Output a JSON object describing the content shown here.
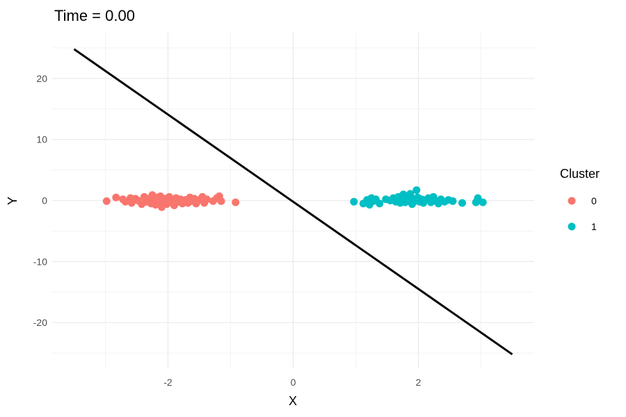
{
  "chart_data": {
    "type": "scatter",
    "title": "Time = 0.00",
    "xlabel": "X",
    "ylabel": "Y",
    "xlim": [
      -3.85,
      3.85
    ],
    "ylim": [
      -27.5,
      27.5
    ],
    "x_ticks": [
      -2,
      0,
      2
    ],
    "y_ticks": [
      -20,
      -10,
      0,
      10,
      20
    ],
    "x_tick_labels": [
      "-2",
      "0",
      "2"
    ],
    "y_tick_labels": [
      "-20",
      "-10",
      "0",
      "10",
      "20"
    ],
    "grid": true,
    "legend": {
      "title": "Cluster",
      "position": "right"
    },
    "series": [
      {
        "name": "0",
        "color": "#F8766D",
        "points": [
          [
            -2.98,
            -0.1
          ],
          [
            -2.83,
            0.5
          ],
          [
            -2.72,
            0.2
          ],
          [
            -2.68,
            -0.2
          ],
          [
            -2.6,
            0.4
          ],
          [
            -2.58,
            -0.4
          ],
          [
            -2.52,
            0.3
          ],
          [
            -2.48,
            0.0
          ],
          [
            -2.42,
            -0.6
          ],
          [
            -2.38,
            0.6
          ],
          [
            -2.35,
            -0.2
          ],
          [
            -2.3,
            0.3
          ],
          [
            -2.27,
            -0.5
          ],
          [
            -2.25,
            0.9
          ],
          [
            -2.22,
            0.0
          ],
          [
            -2.2,
            -0.7
          ],
          [
            -2.18,
            0.5
          ],
          [
            -2.15,
            -0.3
          ],
          [
            -2.12,
            0.7
          ],
          [
            -2.1,
            -1.1
          ],
          [
            -2.07,
            -0.2
          ],
          [
            -2.05,
            0.3
          ],
          [
            -2.02,
            -0.6
          ],
          [
            -1.98,
            0.6
          ],
          [
            -1.95,
            -0.3
          ],
          [
            -1.92,
            0.1
          ],
          [
            -1.9,
            -0.8
          ],
          [
            -1.87,
            0.4
          ],
          [
            -1.83,
            -0.2
          ],
          [
            -1.8,
            0.2
          ],
          [
            -1.77,
            -0.5
          ],
          [
            -1.72,
            0.1
          ],
          [
            -1.68,
            -0.4
          ],
          [
            -1.65,
            0.5
          ],
          [
            -1.62,
            -0.1
          ],
          [
            -1.58,
            0.3
          ],
          [
            -1.55,
            -0.5
          ],
          [
            -1.5,
            0.1
          ],
          [
            -1.45,
            0.6
          ],
          [
            -1.42,
            -0.4
          ],
          [
            -1.38,
            0.2
          ],
          [
            -1.28,
            -0.1
          ],
          [
            -1.22,
            0.4
          ],
          [
            -1.18,
            0.7
          ],
          [
            -1.15,
            -0.1
          ],
          [
            -0.92,
            -0.3
          ]
        ]
      },
      {
        "name": "1",
        "color": "#00BFC4",
        "points": [
          [
            0.97,
            -0.2
          ],
          [
            1.12,
            -0.5
          ],
          [
            1.18,
            0.1
          ],
          [
            1.22,
            -0.7
          ],
          [
            1.25,
            0.4
          ],
          [
            1.28,
            -0.1
          ],
          [
            1.32,
            0.2
          ],
          [
            1.38,
            -0.5
          ],
          [
            1.48,
            0.2
          ],
          [
            1.55,
            0.0
          ],
          [
            1.6,
            0.4
          ],
          [
            1.64,
            -0.2
          ],
          [
            1.68,
            0.6
          ],
          [
            1.71,
            -0.4
          ],
          [
            1.74,
            0.2
          ],
          [
            1.76,
            1.0
          ],
          [
            1.79,
            -0.3
          ],
          [
            1.82,
            0.5
          ],
          [
            1.84,
            0.0
          ],
          [
            1.87,
            1.1
          ],
          [
            1.9,
            -0.6
          ],
          [
            1.92,
            0.3
          ],
          [
            1.94,
            -0.1
          ],
          [
            1.97,
            1.7
          ],
          [
            1.99,
            0.5
          ],
          [
            2.02,
            -0.2
          ],
          [
            2.05,
            0.2
          ],
          [
            2.08,
            -0.4
          ],
          [
            2.12,
            0.1
          ],
          [
            2.16,
            0.4
          ],
          [
            2.2,
            -0.3
          ],
          [
            2.24,
            0.6
          ],
          [
            2.28,
            -0.1
          ],
          [
            2.32,
            -0.5
          ],
          [
            2.36,
            0.2
          ],
          [
            2.42,
            -0.2
          ],
          [
            2.48,
            0.1
          ],
          [
            2.55,
            -0.1
          ],
          [
            2.7,
            -0.4
          ],
          [
            2.92,
            -0.3
          ],
          [
            2.95,
            0.4
          ],
          [
            3.03,
            -0.3
          ]
        ]
      }
    ],
    "line": {
      "color": "#000000",
      "points": [
        [
          -3.5,
          24.8
        ],
        [
          3.5,
          -25.2
        ]
      ]
    }
  }
}
